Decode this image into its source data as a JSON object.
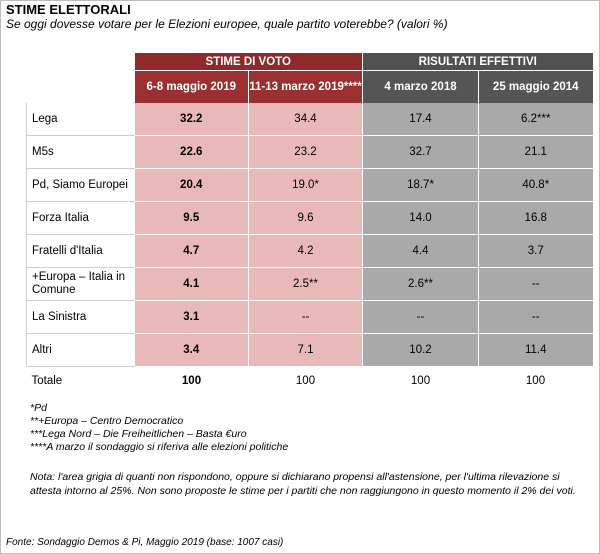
{
  "title": "STIME ELETTORALI",
  "subtitle": "Se oggi dovesse votare per le Elezioni europee, quale partito voterebbe? (valori %)",
  "groups": {
    "stime": "STIME DI VOTO",
    "risultati": "RISULTATI EFFETTIVI"
  },
  "columns": [
    "6-8 maggio 2019",
    "11-13 marzo 2019****",
    "4 marzo 2018",
    "25 maggio 2014"
  ],
  "rows": [
    {
      "party": "Lega",
      "values": [
        "32.2",
        "34.4",
        "17.4",
        "6.2***"
      ]
    },
    {
      "party": "M5s",
      "values": [
        "22.6",
        "23.2",
        "32.7",
        "21.1"
      ]
    },
    {
      "party": "Pd, Siamo Europei",
      "values": [
        "20.4",
        "19.0*",
        "18.7*",
        "40.8*"
      ]
    },
    {
      "party": "Forza Italia",
      "values": [
        "9.5",
        "9.6",
        "14.0",
        "16.8"
      ]
    },
    {
      "party": "Fratelli d'Italia",
      "values": [
        "4.7",
        "4.2",
        "4.4",
        "3.7"
      ]
    },
    {
      "party": "+Europa – Italia in Comune",
      "values": [
        "4.1",
        "2.5**",
        "2.6**",
        "--"
      ]
    },
    {
      "party": "La Sinistra",
      "values": [
        "3.1",
        "--",
        "--",
        "--"
      ]
    },
    {
      "party": "Altri",
      "values": [
        "3.4",
        "7.1",
        "10.2",
        "11.4"
      ]
    }
  ],
  "total": {
    "label": "Totale",
    "values": [
      "100",
      "100",
      "100",
      "100"
    ]
  },
  "footnotes": [
    "*Pd",
    "**+Europa – Centro Democratico",
    "***Lega Nord – Die Freiheitlichen – Basta €uro",
    "****A marzo il sondaggio si riferiva alle elezioni politiche"
  ],
  "note": "Nota: l'area grigia di quanti non rispondono, oppure si dichiarano propensi all'astensione, per l'ultima rilevazione si attesta intorno al 25%. Non sono proposte le stime per i partiti che non raggiungono in questo momento il 2% dei voti.",
  "source": "Fonte: Sondaggio Demos & Pi, Maggio 2019 (base: 1007 casi)"
}
